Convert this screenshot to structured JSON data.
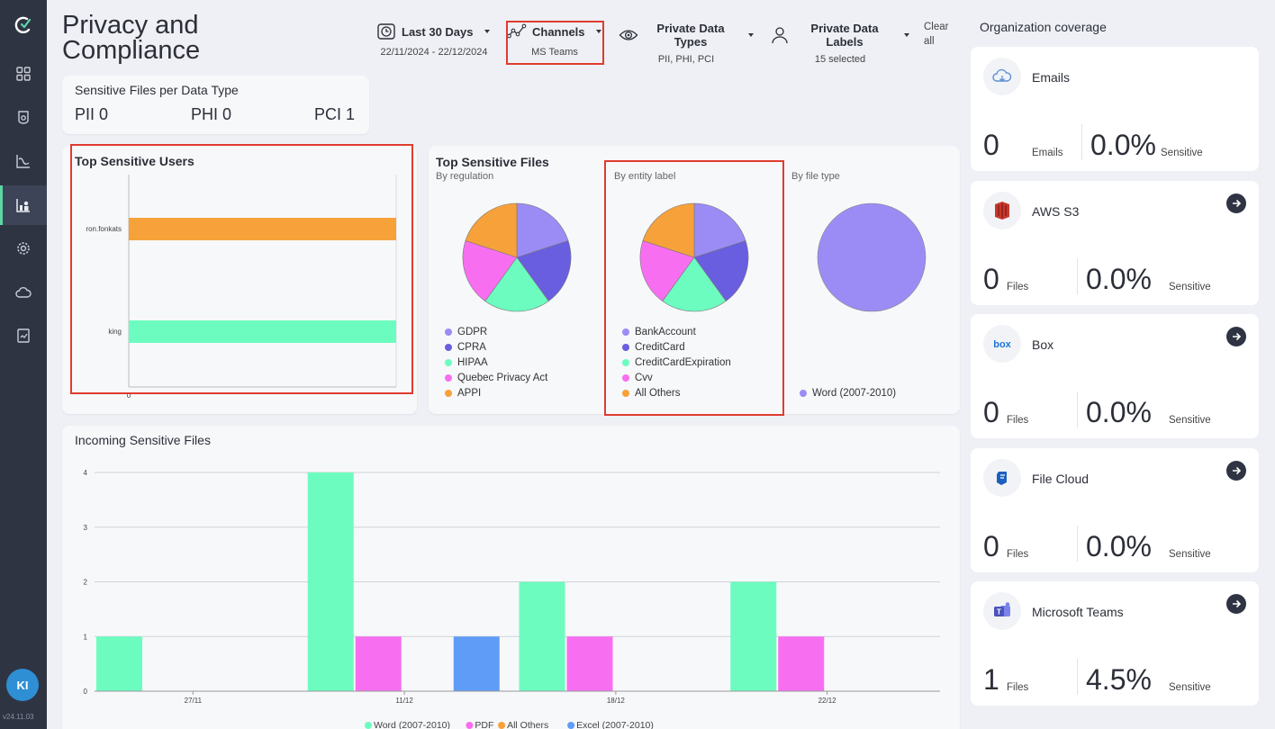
{
  "app": {
    "version": "v24.11.03",
    "user_initials": "KI"
  },
  "page": {
    "title": "Privacy and Compliance"
  },
  "filters": {
    "date": {
      "label": "Last 30 Days",
      "value": "22/11/2024 - 22/12/2024",
      "icon": "clock-icon"
    },
    "channels": {
      "label": "Channels",
      "value": "MS Teams",
      "icon": "channels-icon"
    },
    "data_types": {
      "label": "Private Data Types",
      "value": "PII, PHI, PCI",
      "icon": "eye-icon"
    },
    "data_labels": {
      "label": "Private Data Labels",
      "value": "15 selected",
      "icon": "user-icon"
    },
    "clear_all": "Clear all"
  },
  "sensitive_per_type": {
    "title": "Sensitive Files per Data Type",
    "items": [
      {
        "label": "PII",
        "value": "0"
      },
      {
        "label": "PHI",
        "value": "0"
      },
      {
        "label": "PCI",
        "value": "1"
      }
    ]
  },
  "top_users": {
    "title": "Top Sensitive Users",
    "users": [
      "ron.fonkats",
      "king"
    ],
    "colors": [
      "#f7a13a",
      "#6dfcc0"
    ],
    "x_tick": "0"
  },
  "top_files": {
    "title": "Top Sensitive Files",
    "pies": [
      {
        "subtitle": "By regulation",
        "labels": [
          "GDPR",
          "CPRA",
          "HIPAA",
          "Quebec Privacy Act",
          "APPI"
        ],
        "values": [
          1,
          1,
          1,
          1,
          1
        ],
        "colors": [
          "#9b8cf5",
          "#6a5ee0",
          "#6dfcc0",
          "#f76ff0",
          "#f7a13a"
        ]
      },
      {
        "subtitle": "By entity label",
        "labels": [
          "BankAccount",
          "CreditCard",
          "CreditCardExpiration",
          "Cvv",
          "All Others"
        ],
        "values": [
          1,
          1,
          1,
          1,
          1
        ],
        "colors": [
          "#9b8cf5",
          "#6a5ee0",
          "#6dfcc0",
          "#f76ff0",
          "#f7a13a"
        ]
      },
      {
        "subtitle": "By file type",
        "labels": [
          "Word (2007-2010)"
        ],
        "values": [
          1
        ],
        "colors": [
          "#9b8cf5"
        ]
      }
    ]
  },
  "incoming": {
    "title": "Incoming Sensitive Files"
  },
  "chart_data": {
    "type": "bar",
    "title": "Incoming Sensitive Files",
    "xlabel": "",
    "ylabel": "",
    "ylim": [
      0,
      4
    ],
    "yticks": [
      0,
      1,
      2,
      3,
      4
    ],
    "x_ticks": [
      "27/11",
      "11/12",
      "18/12",
      "22/12"
    ],
    "groups": [
      {
        "bars": [
          {
            "series": "Word (2007-2010)",
            "value": 1
          }
        ]
      },
      {
        "bars": [
          {
            "series": "Word (2007-2010)",
            "value": 4
          },
          {
            "series": "PDF",
            "value": 1
          },
          {
            "series": "Excel (2007-2010)",
            "value": 1
          }
        ]
      },
      {
        "bars": [
          {
            "series": "Word (2007-2010)",
            "value": 2
          },
          {
            "series": "PDF",
            "value": 1
          }
        ]
      },
      {
        "bars": [
          {
            "series": "Word (2007-2010)",
            "value": 2
          },
          {
            "series": "PDF",
            "value": 1
          }
        ]
      }
    ],
    "series": [
      {
        "name": "Word (2007-2010)",
        "color": "#6dfcc0"
      },
      {
        "name": "PDF",
        "color": "#f76ff0"
      },
      {
        "name": "All Others",
        "color": "#f7a13a"
      },
      {
        "name": "Excel (2007-2010)",
        "color": "#5f9cf7"
      }
    ]
  },
  "organization": {
    "title": "Organization coverage",
    "sources": [
      {
        "name": "Emails",
        "count": "0",
        "unit": "Emails",
        "pct": "0.0%",
        "pct_label": "Sensitive",
        "icon": "cloud-icon",
        "arrow": false
      },
      {
        "name": "AWS S3",
        "count": "0",
        "unit": "Files",
        "pct": "0.0%",
        "pct_label": "Sensitive",
        "icon": "aws-s3-icon",
        "arrow": true
      },
      {
        "name": "Box",
        "count": "0",
        "unit": "Files",
        "pct": "0.0%",
        "pct_label": "Sensitive",
        "icon": "box-icon",
        "arrow": true
      },
      {
        "name": "File Cloud",
        "count": "0",
        "unit": "Files",
        "pct": "0.0%",
        "pct_label": "Sensitive",
        "icon": "file-cloud-icon",
        "arrow": true
      },
      {
        "name": "Microsoft Teams",
        "count": "1",
        "unit": "Files",
        "pct": "4.5%",
        "pct_label": "Sensitive",
        "icon": "teams-icon",
        "arrow": true
      }
    ]
  }
}
